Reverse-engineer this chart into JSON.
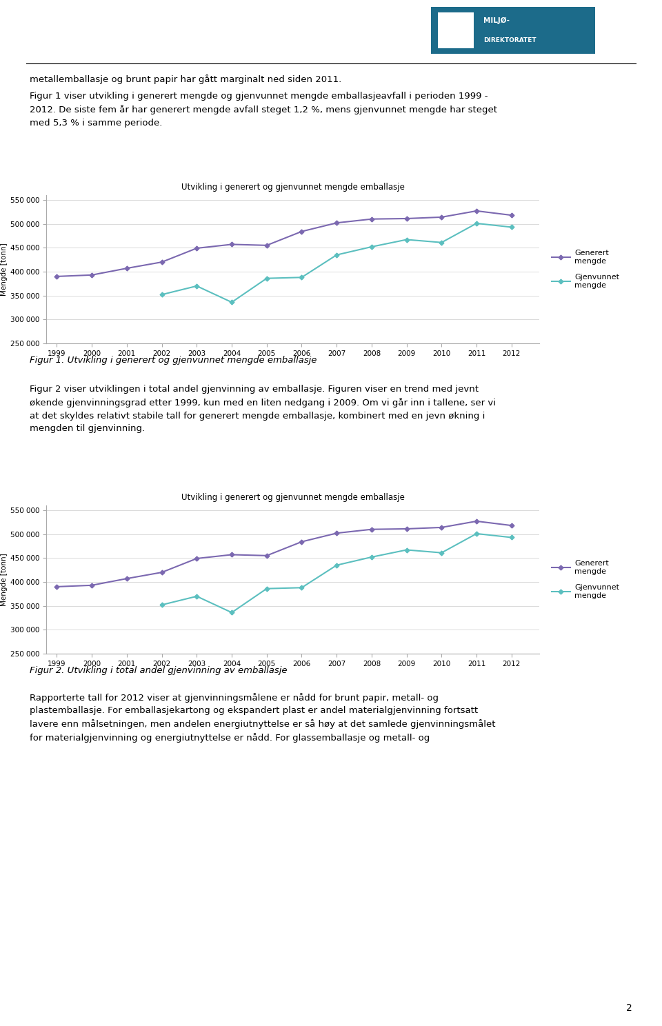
{
  "years": [
    1999,
    2000,
    2001,
    2002,
    2003,
    2004,
    2005,
    2006,
    2007,
    2008,
    2009,
    2010,
    2011,
    2012
  ],
  "generert": [
    390000,
    393000,
    407000,
    420000,
    449000,
    457000,
    455000,
    484000,
    502000,
    510000,
    511000,
    514000,
    527000,
    518000
  ],
  "gjenvunnet_years": [
    2002,
    2003,
    2004,
    2005,
    2006,
    2007,
    2008,
    2009,
    2010,
    2011,
    2012
  ],
  "gjenvunnet_values": [
    352000,
    370000,
    336000,
    386000,
    388000,
    435000,
    452000,
    467000,
    461000,
    501000,
    493000
  ],
  "chart_title": "Utvikling i generert og gjenvunnet mengde emballasje",
  "ylabel": "Mengde [tonn]",
  "generert_color": "#7B68B0",
  "gjenvunnet_color": "#5BBFBF",
  "ylim_min": 250000,
  "ylim_max": 560000,
  "yticks": [
    250000,
    300000,
    350000,
    400000,
    450000,
    500000,
    550000
  ],
  "page_number": "2",
  "main_text_top": "metallemballasje og brunt papir har gått marginalt ned siden 2011.",
  "para1_line1": "Figur 1 viser utvikling i generert mengde og gjenvunnet mengde emballasjeavfall i perioden 1999 -",
  "para1_line2": "2012. De siste fem år har generert mengde avfall steget 1,2 %, mens gjenvunnet mengde har steget",
  "para1_line3": "med 5,3 % i samme periode.",
  "fig1_caption": "Figur 1. Utvikling i generert og gjenvunnet mengde emballasje",
  "para2_line1": "Figur 2 viser utviklingen i total andel gjenvinning av emballasje. Figuren viser en trend med jevnt",
  "para2_line2": "økende gjenvinningsgrad etter 1999, kun med en liten nedgang i 2009. Om vi går inn i tallene, ser vi",
  "para2_line3": "at det skyldes relativt stabile tall for generert mengde emballasje, kombinert med en jevn økning i",
  "para2_line4": "mengden til gjenvinning.",
  "fig2_caption": "Figur 2. Utvikling i total andel gjenvinning av emballasje",
  "para3_line1": "Rapporterte tall for 2012 viser at gjenvinningsmålene er nådd for brunt papir, metall- og",
  "para3_line2": "plastemballasje. For emballasjekartong og ekspandert plast er andel materialgjenvinning fortsatt",
  "para3_line3": "lavere enn målsetningen, men andelen energiutnyttelse er så høy at det samlede gjenvinningsmålet",
  "para3_line4": "for materialgjenvinning og energiutnyttelse er nådd. For glassemballasje og metall- og"
}
